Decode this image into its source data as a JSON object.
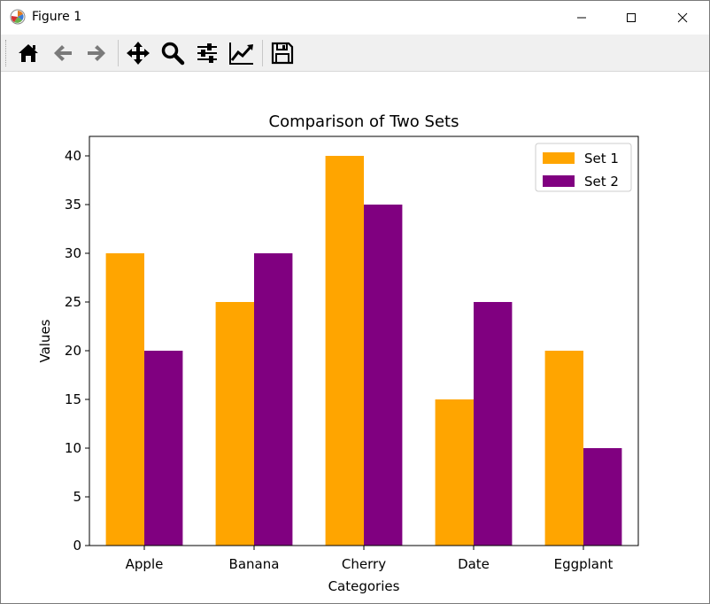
{
  "window": {
    "title": "Figure 1"
  },
  "toolbar": {
    "items": [
      {
        "name": "home-button",
        "icon": "home-icon"
      },
      {
        "name": "back-button",
        "icon": "arrow-left-icon"
      },
      {
        "name": "forward-button",
        "icon": "arrow-right-icon"
      },
      {
        "name": "pan-button",
        "icon": "move-icon"
      },
      {
        "name": "zoom-button",
        "icon": "magnifier-icon"
      },
      {
        "name": "subplots-button",
        "icon": "sliders-icon"
      },
      {
        "name": "edit-axes-button",
        "icon": "line-chart-icon"
      },
      {
        "name": "save-button",
        "icon": "floppy-disk-icon"
      }
    ]
  },
  "chart_data": {
    "type": "bar",
    "title": "Comparison of Two Sets",
    "xlabel": "Categories",
    "ylabel": "Values",
    "categories": [
      "Apple",
      "Banana",
      "Cherry",
      "Date",
      "Eggplant"
    ],
    "series": [
      {
        "name": "Set 1",
        "values": [
          30,
          25,
          40,
          15,
          20
        ],
        "color": "#FFA500"
      },
      {
        "name": "Set 2",
        "values": [
          20,
          30,
          35,
          25,
          10
        ],
        "color": "#800080"
      }
    ],
    "ylim": [
      0,
      42
    ],
    "yticks": [
      "0",
      "5",
      "10",
      "15",
      "20",
      "25",
      "30",
      "35",
      "40"
    ],
    "grid": false,
    "legend_position": "top-right"
  }
}
